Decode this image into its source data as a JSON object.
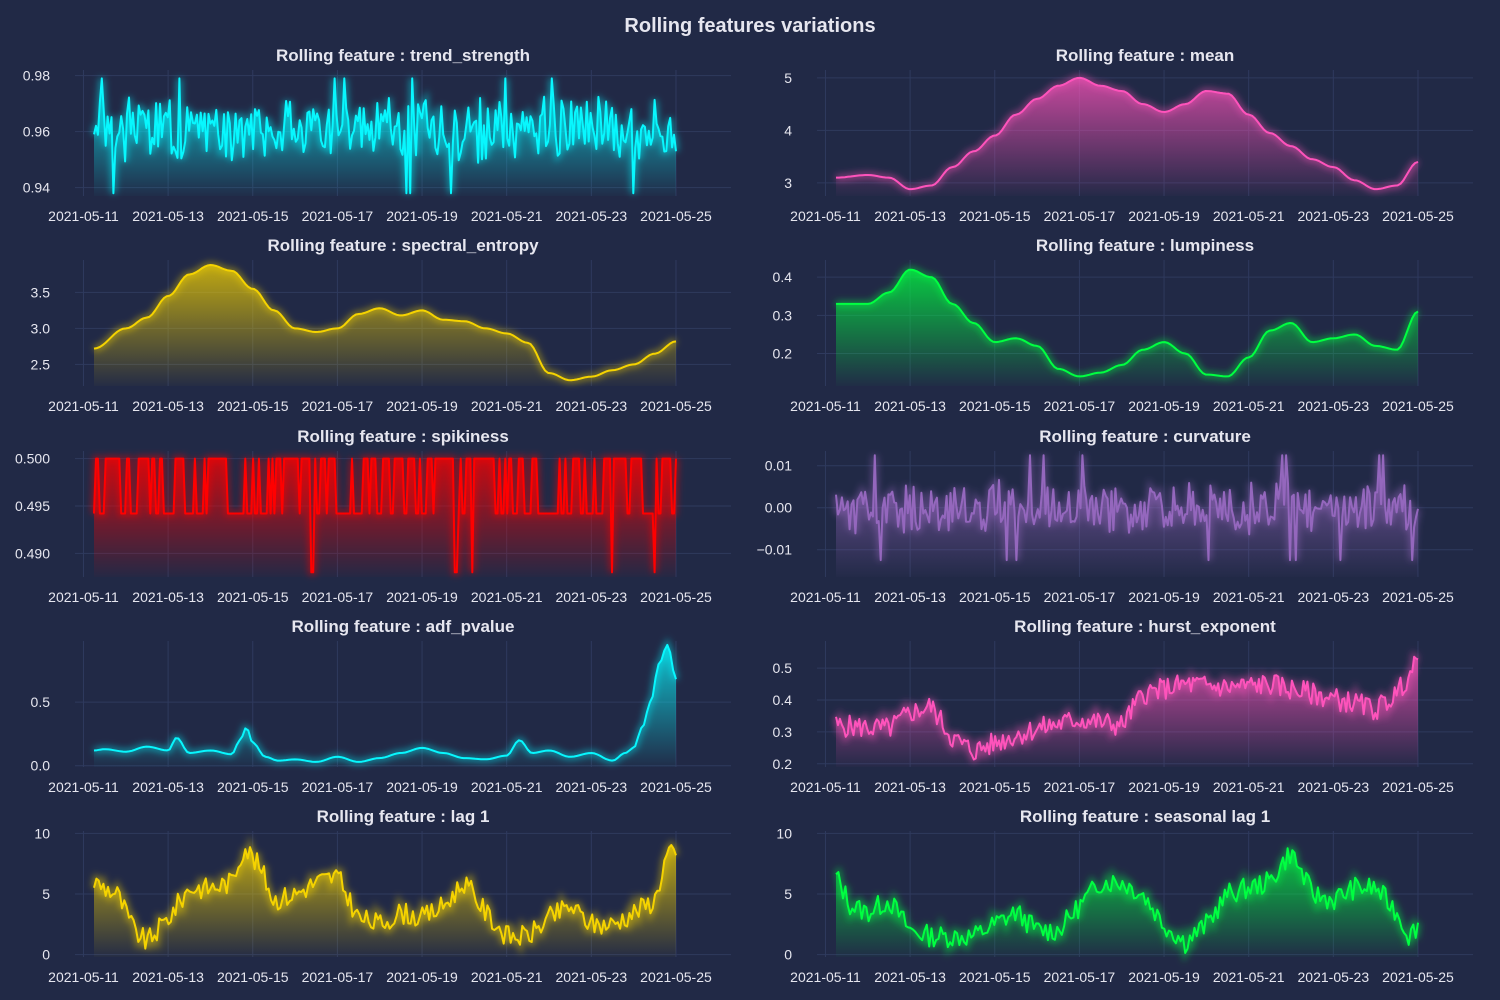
{
  "title": "Rolling features variations",
  "chart_data": [
    {
      "id": "trend_strength",
      "type": "line",
      "title": "Rolling feature : trend_strength",
      "color": "#08F7FE",
      "fill": true,
      "ylim": [
        0.937,
        0.982
      ],
      "yticks": [
        0.94,
        0.96,
        0.98
      ],
      "ytick_labels": [
        "0.94",
        "0.96",
        "0.98"
      ],
      "xlim": [
        -0.2,
        15.3
      ],
      "xticks": [
        0,
        2,
        4,
        6,
        8,
        10,
        12,
        14
      ],
      "xtick_labels": [
        "2021-05-11",
        "2021-05-13",
        "2021-05-15",
        "2021-05-17",
        "2021-05-19",
        "2021-05-21",
        "2021-05-23",
        "2021-05-25"
      ],
      "x_start": 0.25,
      "x_end": 14.0,
      "pattern": "noise",
      "n": 300,
      "base": 0.961,
      "amp": 0.009,
      "seed": 3,
      "yclip": [
        0.938,
        0.979
      ]
    },
    {
      "id": "mean",
      "type": "line",
      "title": "Rolling feature : mean",
      "color": "#FE53BB",
      "fill": true,
      "ylim": [
        2.75,
        5.15
      ],
      "yticks": [
        3,
        4,
        5
      ],
      "ytick_labels": [
        "3",
        "4",
        "5"
      ],
      "xlim": [
        -0.2,
        15.3
      ],
      "xticks": [
        0,
        2,
        4,
        6,
        8,
        10,
        12,
        14
      ],
      "xtick_labels": [
        "2021-05-11",
        "2021-05-13",
        "2021-05-15",
        "2021-05-17",
        "2021-05-19",
        "2021-05-21",
        "2021-05-23",
        "2021-05-25"
      ],
      "x": [
        0.25,
        1.0,
        1.5,
        2.0,
        2.5,
        3.0,
        3.5,
        4.0,
        4.5,
        5.0,
        5.5,
        6.0,
        6.5,
        7.0,
        7.5,
        8.0,
        8.5,
        9.0,
        9.5,
        10.0,
        10.5,
        11.0,
        11.5,
        12.0,
        12.5,
        13.0,
        13.5,
        14.0
      ],
      "y": [
        3.1,
        3.15,
        3.1,
        2.88,
        2.95,
        3.3,
        3.6,
        3.9,
        4.3,
        4.6,
        4.85,
        5.0,
        4.85,
        4.75,
        4.5,
        4.35,
        4.5,
        4.75,
        4.7,
        4.3,
        3.95,
        3.7,
        3.45,
        3.3,
        3.05,
        2.88,
        2.95,
        3.4
      ]
    },
    {
      "id": "spectral_entropy",
      "type": "line",
      "title": "Rolling feature : spectral_entropy",
      "color": "#F5D300",
      "fill": true,
      "ylim": [
        2.2,
        3.95
      ],
      "yticks": [
        2.5,
        3.0,
        3.5
      ],
      "ytick_labels": [
        "2.5",
        "3.0",
        "3.5"
      ],
      "xlim": [
        -0.2,
        15.3
      ],
      "xticks": [
        0,
        2,
        4,
        6,
        8,
        10,
        12,
        14
      ],
      "xtick_labels": [
        "2021-05-11",
        "2021-05-13",
        "2021-05-15",
        "2021-05-17",
        "2021-05-19",
        "2021-05-21",
        "2021-05-23",
        "2021-05-25"
      ],
      "x": [
        0.25,
        1.0,
        1.5,
        2.0,
        2.5,
        3.0,
        3.5,
        4.0,
        4.5,
        5.0,
        5.5,
        6.0,
        6.5,
        7.0,
        7.5,
        8.0,
        8.5,
        9.0,
        9.5,
        10.0,
        10.5,
        11.0,
        11.5,
        12.0,
        12.5,
        13.0,
        13.5,
        14.0
      ],
      "y": [
        2.72,
        3.0,
        3.15,
        3.45,
        3.75,
        3.88,
        3.8,
        3.55,
        3.25,
        3.0,
        2.95,
        3.0,
        3.2,
        3.28,
        3.18,
        3.25,
        3.12,
        3.1,
        3.0,
        2.93,
        2.8,
        2.38,
        2.28,
        2.33,
        2.42,
        2.5,
        2.65,
        2.82
      ]
    },
    {
      "id": "lumpiness",
      "type": "line",
      "title": "Rolling feature : lumpiness",
      "color": "#00ff41",
      "fill": true,
      "ylim": [
        0.115,
        0.445
      ],
      "yticks": [
        0.2,
        0.3,
        0.4
      ],
      "ytick_labels": [
        "0.2",
        "0.3",
        "0.4"
      ],
      "xlim": [
        -0.2,
        15.3
      ],
      "xticks": [
        0,
        2,
        4,
        6,
        8,
        10,
        12,
        14
      ],
      "xtick_labels": [
        "2021-05-11",
        "2021-05-13",
        "2021-05-15",
        "2021-05-17",
        "2021-05-19",
        "2021-05-21",
        "2021-05-23",
        "2021-05-25"
      ],
      "x": [
        0.25,
        1.0,
        1.5,
        2.0,
        2.5,
        3.0,
        3.5,
        4.0,
        4.5,
        5.0,
        5.5,
        6.0,
        6.5,
        7.0,
        7.5,
        8.0,
        8.5,
        9.0,
        9.5,
        10.0,
        10.5,
        11.0,
        11.5,
        12.0,
        12.5,
        13.0,
        13.5,
        14.0
      ],
      "y": [
        0.33,
        0.33,
        0.36,
        0.42,
        0.4,
        0.33,
        0.28,
        0.23,
        0.24,
        0.22,
        0.16,
        0.14,
        0.15,
        0.17,
        0.21,
        0.23,
        0.2,
        0.145,
        0.14,
        0.19,
        0.26,
        0.28,
        0.23,
        0.24,
        0.25,
        0.22,
        0.21,
        0.31
      ]
    },
    {
      "id": "spikiness",
      "type": "line",
      "title": "Rolling feature : spikiness",
      "color": "#FF0000",
      "fill": true,
      "ylim": [
        0.4875,
        0.5008
      ],
      "yticks": [
        0.49,
        0.495,
        0.5
      ],
      "ytick_labels": [
        "0.490",
        "0.495",
        "0.500"
      ],
      "xlim": [
        -0.2,
        15.3
      ],
      "xticks": [
        0,
        2,
        4,
        6,
        8,
        10,
        12,
        14
      ],
      "xtick_labels": [
        "2021-05-11",
        "2021-05-13",
        "2021-05-15",
        "2021-05-17",
        "2021-05-19",
        "2021-05-21",
        "2021-05-23",
        "2021-05-25"
      ],
      "x_start": 0.25,
      "x_end": 14.0,
      "pattern": "binary",
      "n": 300,
      "high": 0.5,
      "low": 0.4942,
      "deep": 0.488,
      "deep_x": [
        5.4,
        8.8,
        9.2,
        12.5,
        13.5
      ],
      "seed": 7
    },
    {
      "id": "curvature",
      "type": "line",
      "title": "Rolling feature : curvature",
      "color": "#9467bd",
      "fill": true,
      "ylim": [
        -0.0165,
        0.0135
      ],
      "yticks": [
        -0.01,
        0.0,
        0.01
      ],
      "ytick_labels": [
        "−0.01",
        "0.00",
        "0.01"
      ],
      "xlim": [
        -0.2,
        15.3
      ],
      "xticks": [
        0,
        2,
        4,
        6,
        8,
        10,
        12,
        14
      ],
      "xtick_labels": [
        "2021-05-11",
        "2021-05-13",
        "2021-05-15",
        "2021-05-17",
        "2021-05-19",
        "2021-05-21",
        "2021-05-23",
        "2021-05-25"
      ],
      "x_start": 0.25,
      "x_end": 14.0,
      "pattern": "noise",
      "n": 300,
      "base": 0.0,
      "amp": 0.0048,
      "seed": 11,
      "yclip": [
        -0.0165,
        0.0135
      ]
    },
    {
      "id": "adf_pvalue",
      "type": "line",
      "title": "Rolling feature : adf_pvalue",
      "color": "#08F7FE",
      "fill": true,
      "ylim": [
        -0.01,
        0.98
      ],
      "yticks": [
        0.0,
        0.5
      ],
      "ytick_labels": [
        "0.0",
        "0.5"
      ],
      "xlim": [
        -0.2,
        15.3
      ],
      "xticks": [
        0,
        2,
        4,
        6,
        8,
        10,
        12,
        14
      ],
      "xtick_labels": [
        "2021-05-11",
        "2021-05-13",
        "2021-05-15",
        "2021-05-17",
        "2021-05-19",
        "2021-05-21",
        "2021-05-23",
        "2021-05-25"
      ],
      "x": [
        0.25,
        0.5,
        1.0,
        1.5,
        2.0,
        2.2,
        2.5,
        3.0,
        3.5,
        3.7,
        3.85,
        4.0,
        4.3,
        4.6,
        5.0,
        5.5,
        6.0,
        6.5,
        7.0,
        7.5,
        8.0,
        8.5,
        9.0,
        9.5,
        10.0,
        10.3,
        10.6,
        11.0,
        11.5,
        12.0,
        12.5,
        12.8,
        13.0,
        13.2,
        13.4,
        13.6,
        13.8,
        14.0
      ],
      "y": [
        0.12,
        0.13,
        0.11,
        0.15,
        0.12,
        0.22,
        0.1,
        0.12,
        0.09,
        0.2,
        0.3,
        0.18,
        0.07,
        0.04,
        0.05,
        0.03,
        0.07,
        0.03,
        0.06,
        0.1,
        0.14,
        0.1,
        0.06,
        0.05,
        0.08,
        0.2,
        0.1,
        0.12,
        0.07,
        0.1,
        0.04,
        0.1,
        0.14,
        0.3,
        0.5,
        0.8,
        0.95,
        0.68
      ]
    },
    {
      "id": "hurst_exponent",
      "type": "line",
      "title": "Rolling feature : hurst_exponent",
      "color": "#FE53BB",
      "fill": true,
      "ylim": [
        0.19,
        0.585
      ],
      "yticks": [
        0.2,
        0.3,
        0.4,
        0.5
      ],
      "ytick_labels": [
        "0.2",
        "0.3",
        "0.4",
        "0.5"
      ],
      "xlim": [
        -0.2,
        15.3
      ],
      "xticks": [
        0,
        2,
        4,
        6,
        8,
        10,
        12,
        14
      ],
      "xtick_labels": [
        "2021-05-11",
        "2021-05-13",
        "2021-05-15",
        "2021-05-17",
        "2021-05-19",
        "2021-05-21",
        "2021-05-23",
        "2021-05-25"
      ],
      "x_start": 0.25,
      "x_end": 14.0,
      "pattern": "noise_trend",
      "n": 300,
      "seed": 5,
      "amp": 0.035,
      "trend_x": [
        0.25,
        1.5,
        2.0,
        2.5,
        3.0,
        3.5,
        4.5,
        5.0,
        6.0,
        7.0,
        7.5,
        8.5,
        9.5,
        10.5,
        11.5,
        12.5,
        13.0,
        13.5,
        14.0
      ],
      "trend_y": [
        0.32,
        0.31,
        0.36,
        0.38,
        0.28,
        0.24,
        0.29,
        0.31,
        0.34,
        0.32,
        0.42,
        0.45,
        0.44,
        0.45,
        0.42,
        0.39,
        0.37,
        0.42,
        0.52
      ]
    },
    {
      "id": "lag1",
      "type": "line",
      "title": "Rolling feature : lag 1",
      "color": "#F5D300",
      "fill": true,
      "ylim": [
        -0.2,
        10.2
      ],
      "yticks": [
        0,
        5,
        10
      ],
      "ytick_labels": [
        "0",
        "5",
        "10"
      ],
      "xlim": [
        -0.2,
        15.3
      ],
      "xticks": [
        0,
        2,
        4,
        6,
        8,
        10,
        12,
        14
      ],
      "xtick_labels": [
        "2021-05-11",
        "2021-05-13",
        "2021-05-15",
        "2021-05-17",
        "2021-05-19",
        "2021-05-21",
        "2021-05-23",
        "2021-05-25"
      ],
      "x_start": 0.25,
      "x_end": 14.0,
      "pattern": "noise_trend",
      "n": 250,
      "seed": 9,
      "amp": 0.9,
      "yclip": [
        0,
        10
      ],
      "trend_x": [
        0.25,
        0.8,
        1.2,
        1.5,
        2.0,
        2.5,
        3.0,
        3.5,
        3.8,
        4.2,
        4.5,
        5.0,
        5.5,
        6.0,
        6.5,
        7.0,
        7.5,
        8.0,
        8.5,
        9.0,
        9.5,
        10.0,
        10.5,
        11.0,
        11.5,
        12.0,
        12.5,
        13.0,
        13.5,
        13.8,
        14.0
      ],
      "trend_y": [
        6,
        5,
        2,
        1,
        3,
        5.5,
        5.5,
        6,
        9,
        7,
        4.5,
        5,
        6,
        6.5,
        3,
        2.5,
        3.5,
        3,
        4,
        6,
        3.5,
        1.5,
        1.5,
        3,
        4,
        2.5,
        2.5,
        3.5,
        4.5,
        8.5,
        8
      ]
    },
    {
      "id": "seasonal_lag1",
      "type": "line",
      "title": "Rolling feature : seasonal lag 1",
      "color": "#00ff41",
      "fill": true,
      "ylim": [
        -0.2,
        10.2
      ],
      "yticks": [
        0,
        5,
        10
      ],
      "ytick_labels": [
        "0",
        "5",
        "10"
      ],
      "xlim": [
        -0.2,
        15.3
      ],
      "xticks": [
        0,
        2,
        4,
        6,
        8,
        10,
        12,
        14
      ],
      "xtick_labels": [
        "2021-05-11",
        "2021-05-13",
        "2021-05-15",
        "2021-05-17",
        "2021-05-19",
        "2021-05-21",
        "2021-05-23",
        "2021-05-25"
      ],
      "x_start": 0.25,
      "x_end": 14.0,
      "pattern": "noise_trend",
      "n": 250,
      "seed": 13,
      "amp": 0.9,
      "yclip": [
        0,
        10
      ],
      "trend_x": [
        0.25,
        0.6,
        1.0,
        1.5,
        2.0,
        2.5,
        3.0,
        3.5,
        4.0,
        4.5,
        5.0,
        5.5,
        6.0,
        6.5,
        7.0,
        7.5,
        8.0,
        8.5,
        9.0,
        9.5,
        10.0,
        10.5,
        11.0,
        11.5,
        12.0,
        12.5,
        13.0,
        13.5,
        13.8,
        14.0
      ],
      "trend_y": [
        6.5,
        4,
        3.5,
        4.5,
        2,
        1.5,
        1.5,
        1.5,
        2.5,
        3.5,
        2,
        2,
        4,
        6,
        6,
        5,
        2.5,
        1,
        2.5,
        5,
        5.5,
        6,
        8.5,
        5,
        4.5,
        5.5,
        5.5,
        3.5,
        1.5,
        2.5
      ]
    }
  ]
}
